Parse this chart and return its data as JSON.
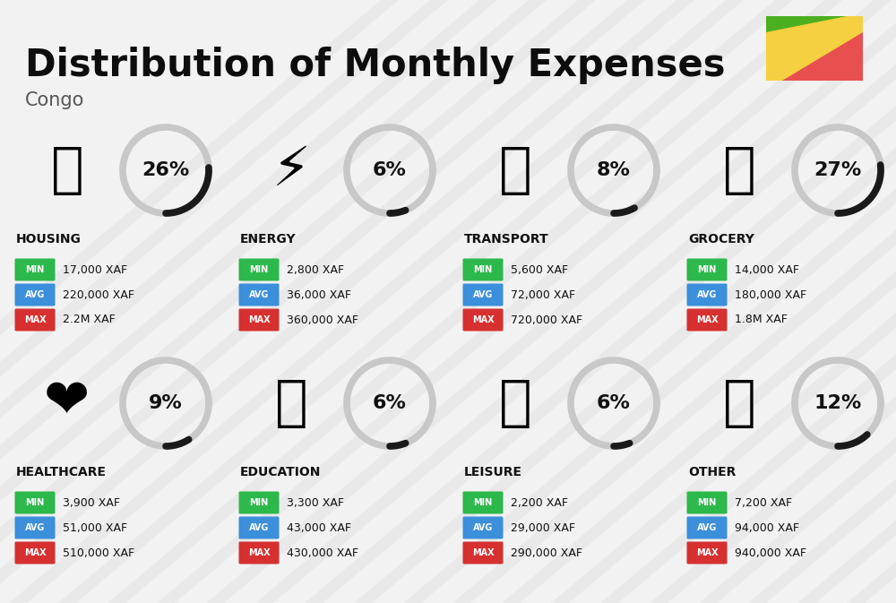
{
  "title": "Distribution of Monthly Expenses",
  "subtitle": "Congo",
  "bg_color": "#f2f2f2",
  "categories": [
    {
      "name": "HOUSING",
      "pct": 26,
      "min": "17,000 XAF",
      "avg": "220,000 XAF",
      "max": "2.2M XAF",
      "icon": "🏙️",
      "col": 0,
      "row": 0
    },
    {
      "name": "ENERGY",
      "pct": 6,
      "min": "2,800 XAF",
      "avg": "36,000 XAF",
      "max": "360,000 XAF",
      "icon": "⚡️",
      "col": 1,
      "row": 0
    },
    {
      "name": "TRANSPORT",
      "pct": 8,
      "min": "5,600 XAF",
      "avg": "72,000 XAF",
      "max": "720,000 XAF",
      "icon": "🚌",
      "col": 2,
      "row": 0
    },
    {
      "name": "GROCERY",
      "pct": 27,
      "min": "14,000 XAF",
      "avg": "180,000 XAF",
      "max": "1.8M XAF",
      "icon": "🛒",
      "col": 3,
      "row": 0
    },
    {
      "name": "HEALTHCARE",
      "pct": 9,
      "min": "3,900 XAF",
      "avg": "51,000 XAF",
      "max": "510,000 XAF",
      "icon": "❤️",
      "col": 0,
      "row": 1
    },
    {
      "name": "EDUCATION",
      "pct": 6,
      "min": "3,300 XAF",
      "avg": "43,000 XAF",
      "max": "430,000 XAF",
      "icon": "🎓",
      "col": 1,
      "row": 1
    },
    {
      "name": "LEISURE",
      "pct": 6,
      "min": "2,200 XAF",
      "avg": "29,000 XAF",
      "max": "290,000 XAF",
      "icon": "🛍️",
      "col": 2,
      "row": 1
    },
    {
      "name": "OTHER",
      "pct": 12,
      "min": "7,200 XAF",
      "avg": "94,000 XAF",
      "max": "940,000 XAF",
      "icon": "💰",
      "col": 3,
      "row": 1
    }
  ],
  "color_min": "#2db84b",
  "color_avg": "#3b8fdb",
  "color_max": "#d63030",
  "arc_dark": "#1a1a1a",
  "arc_light": "#c8c8c8",
  "flag_green": "#4caf20",
  "flag_yellow": "#f5d040",
  "flag_red": "#e85050",
  "stripe_color": "#e0e0e0",
  "title_size": 30,
  "subtitle_size": 15,
  "name_size": 10,
  "pct_size": 16,
  "badge_label_size": 7,
  "badge_val_size": 9
}
